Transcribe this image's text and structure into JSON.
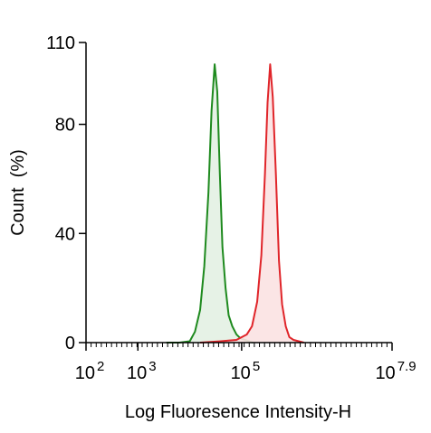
{
  "chart_data": {
    "type": "area",
    "title": "",
    "xlabel": "Log Fluoresence Intensity-H",
    "ylabel": "Count  (%)",
    "xscale": "log",
    "xlim": [
      2,
      7.9
    ],
    "ylim": [
      0,
      110
    ],
    "x_ticks": [
      {
        "base": "10",
        "exp": "2",
        "value": 2
      },
      {
        "base": "10",
        "exp": "3",
        "value": 3
      },
      {
        "base": "10",
        "exp": "5",
        "value": 5
      },
      {
        "base": "10",
        "exp": "7.9",
        "value": 7.9
      }
    ],
    "y_ticks": [
      0,
      40,
      80,
      110
    ],
    "grid": false,
    "legend": "none",
    "series": [
      {
        "color": "#1e8a1e",
        "fill": "#e3f1e3",
        "x": [
          3.55,
          3.8,
          4.0,
          4.1,
          4.2,
          4.28,
          4.36,
          4.42,
          4.48,
          4.53,
          4.58,
          4.63,
          4.69,
          4.75,
          4.82,
          4.9,
          4.98,
          5.06,
          5.14,
          5.22
        ],
        "y": [
          0,
          0,
          0.5,
          4,
          12,
          28,
          55,
          85,
          102,
          92,
          62,
          35,
          20,
          10,
          6,
          3,
          1.5,
          1,
          0.5,
          0
        ]
      },
      {
        "color": "#e0252a",
        "fill": "#fbe2e2",
        "x": [
          4.2,
          4.6,
          4.9,
          5.0,
          5.1,
          5.2,
          5.3,
          5.38,
          5.45,
          5.5,
          5.55,
          5.6,
          5.66,
          5.72,
          5.78,
          5.85,
          5.92,
          6.0,
          6.1,
          6.2
        ],
        "y": [
          0,
          0.5,
          1,
          2,
          3,
          6,
          15,
          32,
          62,
          88,
          102,
          90,
          62,
          30,
          14,
          6,
          2,
          1,
          0.5,
          0
        ]
      }
    ]
  }
}
